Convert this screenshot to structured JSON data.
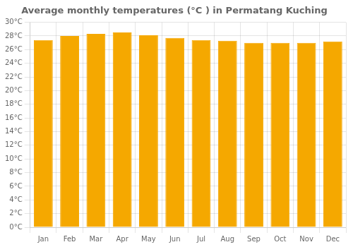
{
  "chart_data": {
    "type": "bar",
    "title": "Average monthly temperatures (°C ) in Permatang Kuching",
    "categories": [
      "Jan",
      "Feb",
      "Mar",
      "Apr",
      "May",
      "Jun",
      "Jul",
      "Aug",
      "Sep",
      "Oct",
      "Nov",
      "Dec"
    ],
    "values": [
      27.4,
      28.0,
      28.3,
      28.5,
      28.1,
      27.7,
      27.4,
      27.3,
      27.0,
      27.0,
      27.0,
      27.2
    ],
    "color": "#F5A800",
    "ylim": [
      0,
      30
    ],
    "yticks": [
      {
        "value": 0,
        "label": "0°C"
      },
      {
        "value": 2,
        "label": "2°C"
      },
      {
        "value": 4,
        "label": "4°C"
      },
      {
        "value": 6,
        "label": "6°C"
      },
      {
        "value": 8,
        "label": "8°C"
      },
      {
        "value": 10,
        "label": "10°C"
      },
      {
        "value": 12,
        "label": "12°C"
      },
      {
        "value": 14,
        "label": "14°C"
      },
      {
        "value": 16,
        "label": "16°C"
      },
      {
        "value": 18,
        "label": "18°C"
      },
      {
        "value": 20,
        "label": "20°C"
      },
      {
        "value": 22,
        "label": "22°C"
      },
      {
        "value": 24,
        "label": "24°C"
      },
      {
        "value": 26,
        "label": "26°C"
      },
      {
        "value": 28,
        "label": "28°C"
      },
      {
        "value": 30,
        "label": "30°C"
      }
    ],
    "grid": true
  }
}
